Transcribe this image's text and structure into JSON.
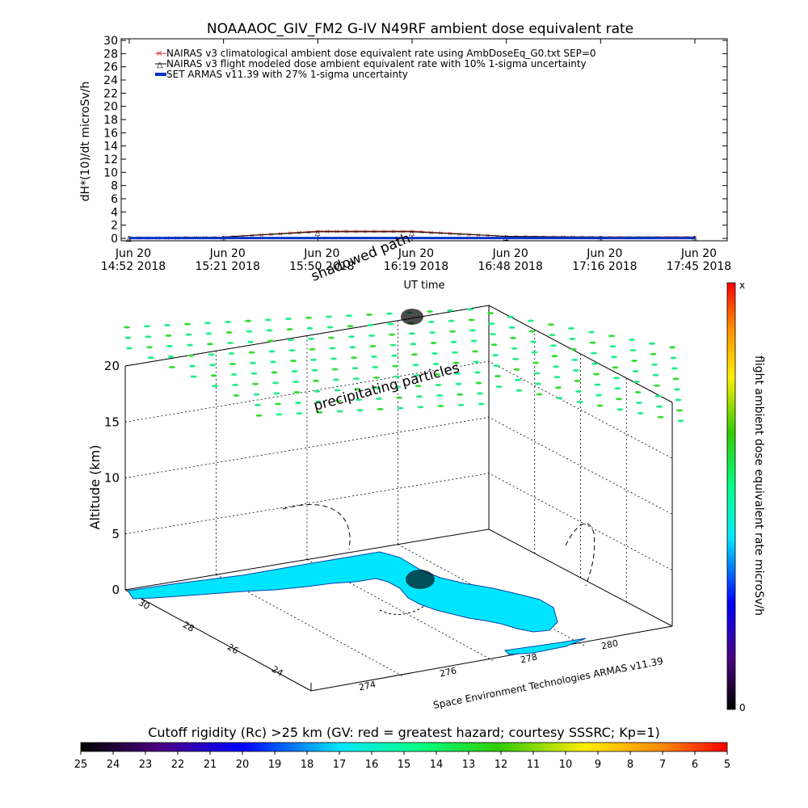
{
  "title": "NOAAAOC_GIV_FM2 G-IV    N49RF  ambient dose equivalent rate",
  "timeseries": {
    "ylabel": "dH*(10)/dt microSv/h",
    "xlabel": "UT time",
    "y_ticks": [
      "0",
      "2",
      "4",
      "6",
      "8",
      "10",
      "12",
      "14",
      "16",
      "18",
      "20",
      "22",
      "24",
      "26",
      "28",
      "30"
    ],
    "x_ticks": [
      {
        "top": "Jun 20",
        "bottom": "14:52 2018"
      },
      {
        "top": "Jun 20",
        "bottom": "15:21 2018"
      },
      {
        "top": "Jun 20",
        "bottom": "15:50 2018"
      },
      {
        "top": "Jun 20",
        "bottom": "16:19 2018"
      },
      {
        "top": "Jun 20",
        "bottom": "16:48 2018"
      },
      {
        "top": "Jun 20",
        "bottom": "17:16 2018"
      },
      {
        "top": "Jun 20",
        "bottom": "17:45 2018"
      }
    ],
    "legend": [
      {
        "text": "NAIRAS v3 climatological ambient dose equivalent rate using AmbDoseEq_G0.txt SEP=0",
        "color": "#c0392b"
      },
      {
        "text": "NAIRAS v3 flight modeled dose ambient equivalent rate with 10% 1-sigma uncertainty",
        "color": "#000000"
      },
      {
        "text": "SET ARMAS v11.39 with 27% 1-sigma uncertainty",
        "color": "#0033cc"
      }
    ]
  },
  "chart_data": {
    "type": "line",
    "title": "NOAAAOC_GIV_FM2 G-IV    N49RF  ambient dose equivalent rate",
    "xlabel": "UT time",
    "ylabel": "dH*(10)/dt microSv/h",
    "ylim": [
      0,
      30
    ],
    "x": [
      "14:52",
      "15:21",
      "15:50",
      "16:19",
      "16:48",
      "17:16",
      "17:45"
    ],
    "series": [
      {
        "name": "NAIRAS v3 climatological ambient dose equivalent rate using AmbDoseEq_G0.txt SEP=0",
        "values": [
          0.1,
          0.2,
          1.1,
          1.1,
          0.3,
          0.2,
          0.2
        ]
      },
      {
        "name": "NAIRAS v3 flight modeled dose ambient equivalent rate with 10% 1-sigma uncertainty",
        "values": [
          0.1,
          0.2,
          1.0,
          1.0,
          0.3,
          0.2,
          0.2
        ]
      },
      {
        "name": "SET ARMAS v11.39 with 27% 1-sigma uncertainty",
        "values": [
          0.05,
          0.05,
          0.05,
          0.05,
          0.05,
          0.05,
          0.05
        ]
      }
    ],
    "grid": false
  },
  "map3d": {
    "shadowed_path_label": "shadowed path",
    "precipitating_label": "precipitating particles",
    "altitude_label": "Altitude (km)",
    "altitude_ticks": [
      "0",
      "5",
      "10",
      "15",
      "20"
    ],
    "lat_ticks": [
      "30",
      "28",
      "26",
      "24"
    ],
    "lon_ticks": [
      "274",
      "276",
      "278",
      "280"
    ],
    "credit": "Space Environment Technologies ARMAS v11.39"
  },
  "right_colorbar": {
    "label": "flight ambient dose equivalent rate microSv/h",
    "top_label": "x",
    "bottom_label": "0"
  },
  "bottom_colorbar": {
    "title": "Cutoff rigidity (Rc) >25 km (GV: red = greatest hazard; courtesy SSSRC; Kp=1)",
    "ticks": [
      "25",
      "24",
      "23",
      "22",
      "21",
      "20",
      "19",
      "18",
      "17",
      "16",
      "15",
      "14",
      "13",
      "12",
      "11",
      "10",
      "9",
      "8",
      "7",
      "6",
      "5"
    ]
  }
}
